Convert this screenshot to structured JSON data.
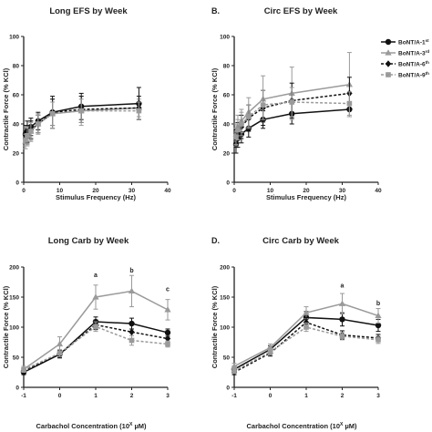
{
  "chart_data": [
    {
      "type": "line",
      "panel_letter": "",
      "title": "Long EFS by Week",
      "xlabel": "Stimulus Frequency (Hz)",
      "ylabel": "Contractile Force (% KCl)",
      "xlim": [
        0,
        40
      ],
      "ylim": [
        0,
        100
      ],
      "xticks": [
        "0",
        "10",
        "20",
        "30",
        "40"
      ],
      "yticks": [
        "0",
        "20",
        "40",
        "60",
        "80",
        "100"
      ],
      "x": [
        0.5,
        1,
        2,
        4,
        8,
        16,
        32
      ],
      "series": [
        {
          "name": "BoNT/A-1",
          "values": [
            33,
            35,
            38,
            42,
            48,
            52,
            54
          ],
          "errors": [
            6,
            7,
            6,
            6,
            11,
            9,
            11
          ]
        },
        {
          "name": "BoNT/A-3",
          "values": [
            28,
            32,
            35,
            40,
            47,
            49,
            51
          ],
          "errors": [
            5,
            7,
            7,
            7,
            10,
            10,
            6
          ]
        },
        {
          "name": "BoNT/A-6",
          "values": [
            30,
            33,
            36,
            40,
            48,
            50,
            51
          ],
          "errors": [
            5,
            6,
            6,
            6,
            9,
            9,
            8
          ]
        },
        {
          "name": "BoNT/A-9",
          "values": [
            29,
            32,
            35,
            40,
            47,
            49,
            49
          ],
          "errors": [
            4,
            6,
            6,
            6,
            8,
            8,
            6
          ]
        }
      ]
    },
    {
      "type": "line",
      "panel_letter": "B.",
      "title": "Circ EFS by Week",
      "xlabel": "Stimulus Frequency (Hz)",
      "ylabel": "Contractile Force (% KCl)",
      "xlim": [
        0,
        40
      ],
      "ylim": [
        0,
        100
      ],
      "xticks": [
        "0",
        "10",
        "20",
        "30",
        "40"
      ],
      "yticks": [
        "0",
        "20",
        "40",
        "60",
        "80",
        "100"
      ],
      "x": [
        0.5,
        1,
        2,
        4,
        8,
        16,
        32
      ],
      "series": [
        {
          "name": "BoNT/A-1",
          "values": [
            26,
            30,
            33,
            37,
            43,
            47,
            50
          ],
          "errors": [
            6,
            6,
            6,
            6,
            6,
            7,
            5
          ]
        },
        {
          "name": "BoNT/A-3",
          "values": [
            33,
            38,
            42,
            48,
            57,
            61,
            67
          ],
          "errors": [
            7,
            8,
            8,
            10,
            16,
            18,
            22
          ]
        },
        {
          "name": "BoNT/A-6",
          "values": [
            30,
            34,
            38,
            44,
            51,
            56,
            61
          ],
          "errors": [
            6,
            7,
            8,
            9,
            12,
            12,
            11
          ]
        },
        {
          "name": "BoNT/A-9",
          "values": [
            31,
            36,
            40,
            45,
            53,
            55,
            54
          ],
          "errors": [
            6,
            7,
            8,
            8,
            10,
            10,
            8
          ]
        }
      ]
    },
    {
      "type": "line",
      "panel_letter": "",
      "title": "Long Carb by Week",
      "xlabel": "Carbachol Concentration (10",
      "xlabel_sup": "X",
      "xlabel_end": " µM)",
      "ylabel": "Contractile Force (% KCl)",
      "xlim": [
        -1,
        3
      ],
      "ylim": [
        0,
        200
      ],
      "xticks": [
        "-1",
        "0",
        "1",
        "2",
        "3"
      ],
      "yticks": [
        "0",
        "50",
        "100",
        "150",
        "200"
      ],
      "x": [
        -1,
        0,
        1,
        2,
        3
      ],
      "annotations": [
        {
          "text": "a",
          "x": 1,
          "y": 183
        },
        {
          "text": "b",
          "x": 2,
          "y": 191
        },
        {
          "text": "c",
          "x": 3,
          "y": 160
        }
      ],
      "series": [
        {
          "name": "BoNT/A-1",
          "values": [
            25,
            55,
            109,
            106,
            91
          ],
          "errors": [
            4,
            6,
            8,
            9,
            6
          ]
        },
        {
          "name": "BoNT/A-3",
          "values": [
            30,
            72,
            150,
            160,
            129
          ],
          "errors": [
            5,
            12,
            20,
            26,
            17
          ]
        },
        {
          "name": "BoNT/A-6",
          "values": [
            28,
            55,
            104,
            92,
            81
          ],
          "errors": [
            4,
            6,
            8,
            12,
            8
          ]
        },
        {
          "name": "BoNT/A-9",
          "values": [
            29,
            57,
            101,
            78,
            72
          ],
          "errors": [
            4,
            6,
            8,
            8,
            5
          ]
        }
      ]
    },
    {
      "type": "line",
      "panel_letter": "D.",
      "title": "Circ Carb by Week",
      "xlabel": "Carbachol Concentration (10",
      "xlabel_sup": "X",
      "xlabel_end": " µM)",
      "ylabel": "Contractile Force (% KCl)",
      "xlim": [
        -1,
        3
      ],
      "ylim": [
        0,
        200
      ],
      "xticks": [
        "-1",
        "0",
        "1",
        "2",
        "3"
      ],
      "yticks": [
        "0",
        "50",
        "100",
        "150",
        "200"
      ],
      "x": [
        -1,
        0,
        1,
        2,
        3
      ],
      "annotations": [
        {
          "text": "a",
          "x": 2,
          "y": 166
        },
        {
          "text": "b",
          "x": 3,
          "y": 136
        }
      ],
      "series": [
        {
          "name": "BoNT/A-1",
          "values": [
            30,
            63,
            116,
            113,
            103
          ],
          "errors": [
            5,
            6,
            10,
            11,
            10
          ]
        },
        {
          "name": "BoNT/A-3",
          "values": [
            35,
            66,
            124,
            139,
            119
          ],
          "errors": [
            5,
            6,
            10,
            17,
            12
          ]
        },
        {
          "name": "BoNT/A-6",
          "values": [
            25,
            57,
            108,
            87,
            82
          ],
          "errors": [
            4,
            5,
            8,
            7,
            6
          ]
        },
        {
          "name": "BoNT/A-9",
          "values": [
            27,
            59,
            100,
            85,
            79
          ],
          "errors": [
            4,
            5,
            7,
            6,
            6
          ]
        }
      ]
    }
  ],
  "legend": {
    "placement": "right of panel B",
    "entries": [
      {
        "label": "BoNT/A-1",
        "suffix": "st",
        "color": "#111111",
        "marker": "circle",
        "dash": "solid"
      },
      {
        "label": "BoNT/A-3",
        "suffix": "rd",
        "color": "#9a9a9a",
        "marker": "triangle",
        "dash": "solid"
      },
      {
        "label": "BoNT/A-6",
        "suffix": "th",
        "color": "#111111",
        "marker": "diamond",
        "dash": "dashed"
      },
      {
        "label": "BoNT/A-9",
        "suffix": "th",
        "color": "#9a9a9a",
        "marker": "square",
        "dash": "dashed"
      }
    ]
  }
}
